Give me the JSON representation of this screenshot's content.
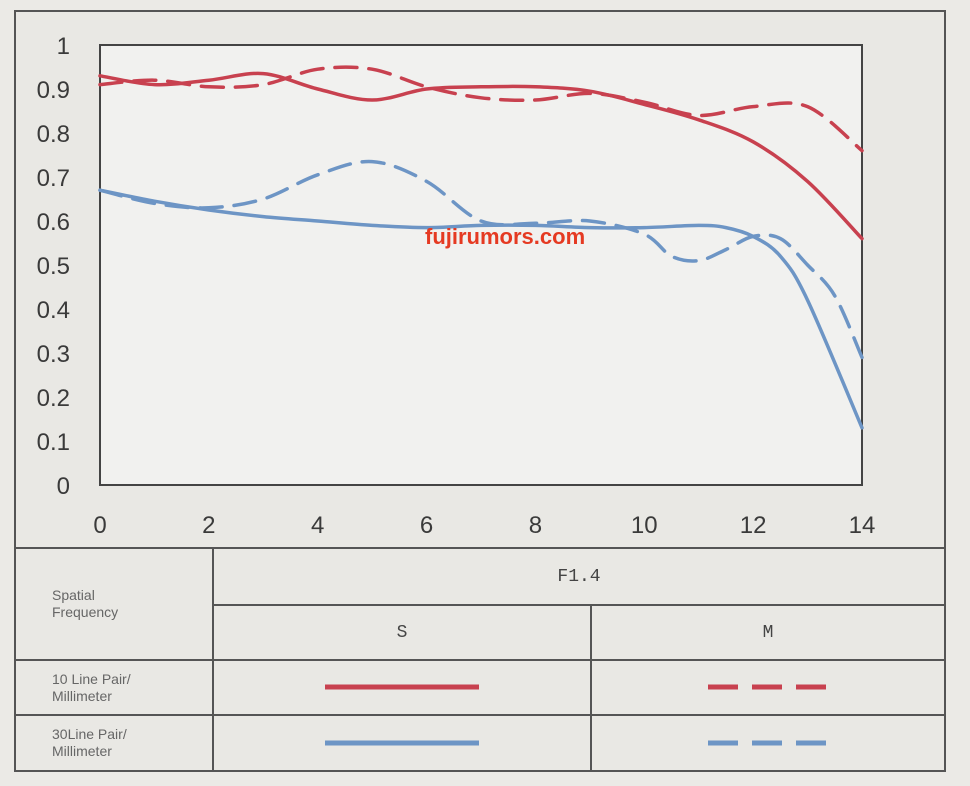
{
  "watermark": "fujirumors.com",
  "colors": {
    "red": "#c8414f",
    "blue": "#6d95c5",
    "axis": "#444444",
    "plot_bg": "#f1f1ef"
  },
  "legend": {
    "header_label": "Spatial Frequency",
    "header_label_lines": [
      "Spatial",
      "Frequency"
    ],
    "aperture": "F1.4",
    "col_s": "S",
    "col_m": "M",
    "rows": [
      {
        "label_lines": [
          "10 Line Pair/",
          "Millimeter"
        ],
        "color": "#c8414f"
      },
      {
        "label_lines": [
          "30Line Pair/",
          "Millimeter"
        ],
        "color": "#6d95c5"
      }
    ]
  },
  "chart_data": {
    "type": "line",
    "title": "",
    "xlabel": "",
    "ylabel": "",
    "xlim": [
      0,
      14
    ],
    "ylim": [
      0,
      1
    ],
    "xticks": [
      "0",
      "2",
      "4",
      "6",
      "8",
      "10",
      "12",
      "14"
    ],
    "yticks": [
      "0",
      "0.1",
      "0.2",
      "0.3",
      "0.4",
      "0.5",
      "0.6",
      "0.7",
      "0.8",
      "0.9",
      "1"
    ],
    "grid": true,
    "series": [
      {
        "name": "10 Line Pair/ Millimeter S",
        "color": "#c8414f",
        "dash": "solid",
        "x": [
          0,
          1,
          2,
          3,
          4,
          5,
          6,
          7,
          8,
          9,
          10,
          11,
          12,
          13,
          14
        ],
        "y": [
          0.93,
          0.91,
          0.92,
          0.935,
          0.9,
          0.875,
          0.9,
          0.905,
          0.905,
          0.895,
          0.865,
          0.83,
          0.78,
          0.69,
          0.56
        ]
      },
      {
        "name": "10 Line Pair/ Millimeter M",
        "color": "#c8414f",
        "dash": "dashed",
        "x": [
          0,
          1,
          2,
          3,
          4,
          5,
          6,
          7,
          8,
          9,
          10,
          11,
          12,
          13,
          14
        ],
        "y": [
          0.91,
          0.92,
          0.905,
          0.91,
          0.945,
          0.945,
          0.905,
          0.88,
          0.875,
          0.89,
          0.87,
          0.84,
          0.86,
          0.86,
          0.76
        ]
      },
      {
        "name": "30Line Pair/ Millimeter S",
        "color": "#6d95c5",
        "dash": "solid",
        "x": [
          0,
          1,
          2,
          3,
          4,
          5,
          6,
          7,
          8,
          9,
          10,
          11,
          11.5,
          12,
          12.5,
          13,
          14
        ],
        "y": [
          0.67,
          0.645,
          0.625,
          0.61,
          0.6,
          0.59,
          0.585,
          0.59,
          0.59,
          0.585,
          0.585,
          0.59,
          0.585,
          0.565,
          0.52,
          0.42,
          0.13
        ]
      },
      {
        "name": "30Line Pair/ Millimeter M",
        "color": "#6d95c5",
        "dash": "dashed",
        "x": [
          0,
          1,
          2,
          3,
          4,
          5,
          6,
          7,
          8,
          9,
          10,
          10.5,
          11,
          11.5,
          12,
          12.5,
          13,
          13.5,
          14
        ],
        "y": [
          0.67,
          0.64,
          0.63,
          0.65,
          0.705,
          0.735,
          0.69,
          0.6,
          0.595,
          0.6,
          0.57,
          0.52,
          0.51,
          0.535,
          0.565,
          0.56,
          0.5,
          0.43,
          0.29
        ]
      }
    ]
  }
}
